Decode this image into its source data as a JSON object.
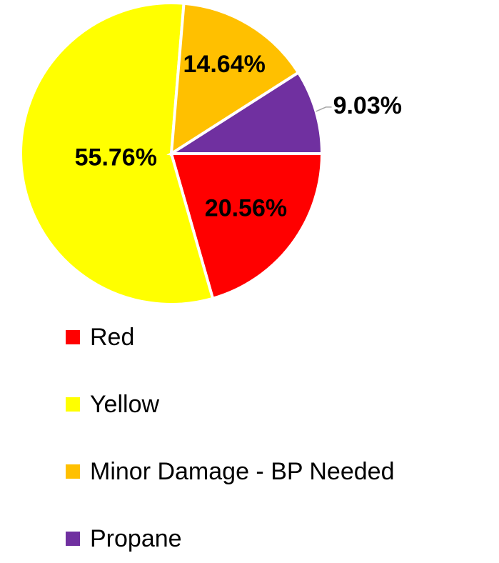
{
  "chart_data": {
    "type": "pie",
    "categories": [
      "Red",
      "Yellow",
      "Minor Damage - BP Needed",
      "Propane"
    ],
    "values": [
      20.56,
      55.76,
      14.64,
      9.03
    ],
    "value_labels": [
      "20.56%",
      "55.76%",
      "14.64%",
      "9.03%"
    ],
    "colors": [
      "#ff0000",
      "#ffff00",
      "#ffc000",
      "#7030a0"
    ],
    "legend": "bottom"
  }
}
